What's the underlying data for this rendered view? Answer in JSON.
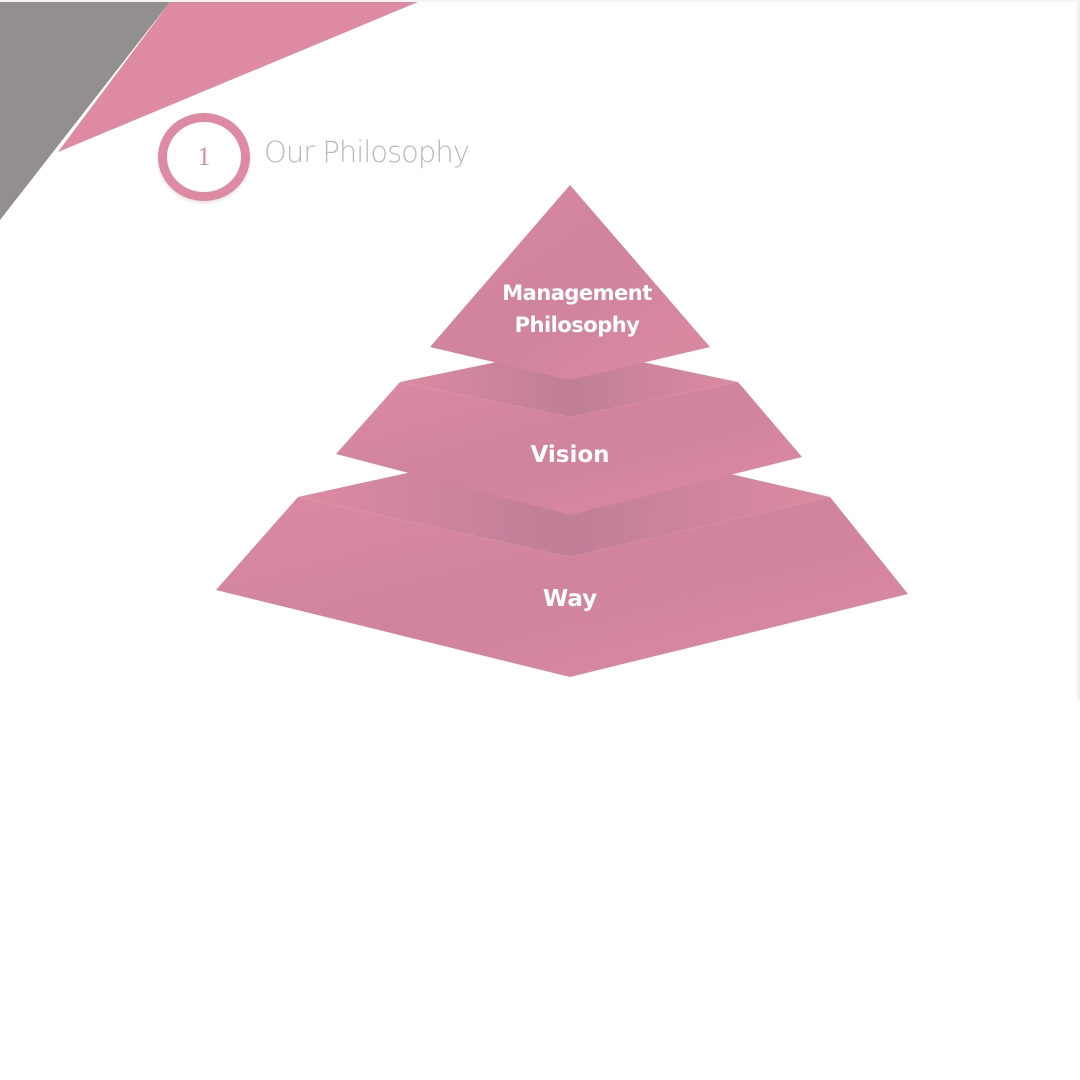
{
  "section": {
    "number": "1",
    "title": "Our Philosophy"
  },
  "pyramid": {
    "tiers": [
      {
        "label": "Management Philosophy"
      },
      {
        "label": "Vision"
      },
      {
        "label": "Way"
      }
    ]
  },
  "colors": {
    "accent_pink": "#dd8aa2",
    "pink_shadow": "#c0809a",
    "corner_gray": "#938f8e",
    "title_gray": "#b9b9b9"
  }
}
